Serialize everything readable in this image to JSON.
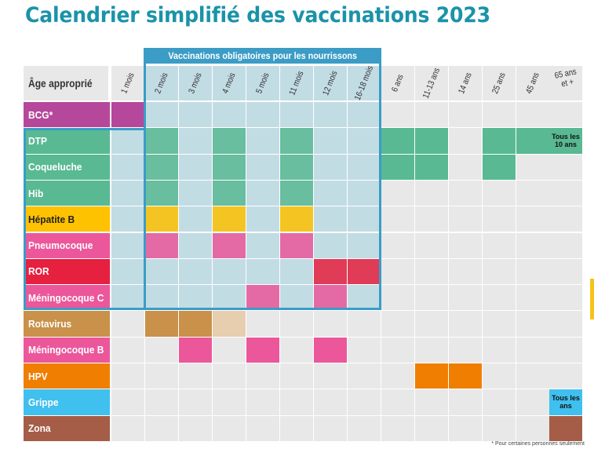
{
  "title": "Calendrier simplifié des vaccinations 2023",
  "header": {
    "age_label": "Âge approprié",
    "mandatory_label": "Vaccinations obligatoires pour les nourrissons",
    "ages": [
      "1 mois",
      "2 mois",
      "3 mois",
      "4 mois",
      "5 mois",
      "11 mois",
      "12 mois",
      "16-18 mois",
      "6 ans",
      "11-13 ans",
      "14 ans",
      "25 ans",
      "45 ans",
      "65 ans et +"
    ]
  },
  "vaccines": [
    {
      "name": "BCG*",
      "color": "#b5489b",
      "filled": [
        0
      ],
      "mandatory": false
    },
    {
      "name": "DTP",
      "color": "#59b993",
      "filled": [
        1,
        3,
        5,
        8,
        9,
        11,
        12,
        13
      ],
      "note": "Tous les 10 ans",
      "mandatory": true
    },
    {
      "name": "Coqueluche",
      "color": "#59b993",
      "filled": [
        1,
        3,
        5,
        8,
        9,
        11
      ],
      "mandatory": true
    },
    {
      "name": "Hib",
      "color": "#59b993",
      "filled": [
        1,
        3,
        5
      ],
      "mandatory": true
    },
    {
      "name": "Hépatite B",
      "color": "#fec200",
      "text_color": "#222222",
      "filled": [
        1,
        3,
        5
      ],
      "mandatory": true
    },
    {
      "name": "Pneumocoque",
      "color": "#eb579a",
      "filled": [
        1,
        3,
        5
      ],
      "mandatory": true
    },
    {
      "name": "ROR",
      "color": "#e6203f",
      "filled": [
        6,
        7
      ],
      "mandatory": true
    },
    {
      "name": "Méningocoque C",
      "color": "#eb579a",
      "filled": [
        4,
        6
      ],
      "mandatory": true
    },
    {
      "name": "Rotavirus",
      "color": "#c9914a",
      "filled": [
        1,
        2,
        3
      ],
      "light": [
        3
      ],
      "mandatory": false
    },
    {
      "name": "Méningocoque B",
      "color": "#eb579a",
      "filled": [
        2,
        4,
        6
      ],
      "mandatory": false
    },
    {
      "name": "HPV",
      "color": "#f07e00",
      "filled": [
        9,
        10
      ],
      "mandatory": false
    },
    {
      "name": "Grippe",
      "color": "#3fc0ef",
      "filled": [
        13
      ],
      "note": "Tous les ans",
      "mandatory": false
    },
    {
      "name": "Zona",
      "color": "#a55d47",
      "filled": [
        13
      ],
      "mandatory": false
    }
  ],
  "colors": {
    "mandatory_bg": "#c2dce4",
    "cell_bg": "#e8e8e8",
    "frame": "#3b9cc6"
  },
  "footnote": "* Pour certaines personnes seulement"
}
